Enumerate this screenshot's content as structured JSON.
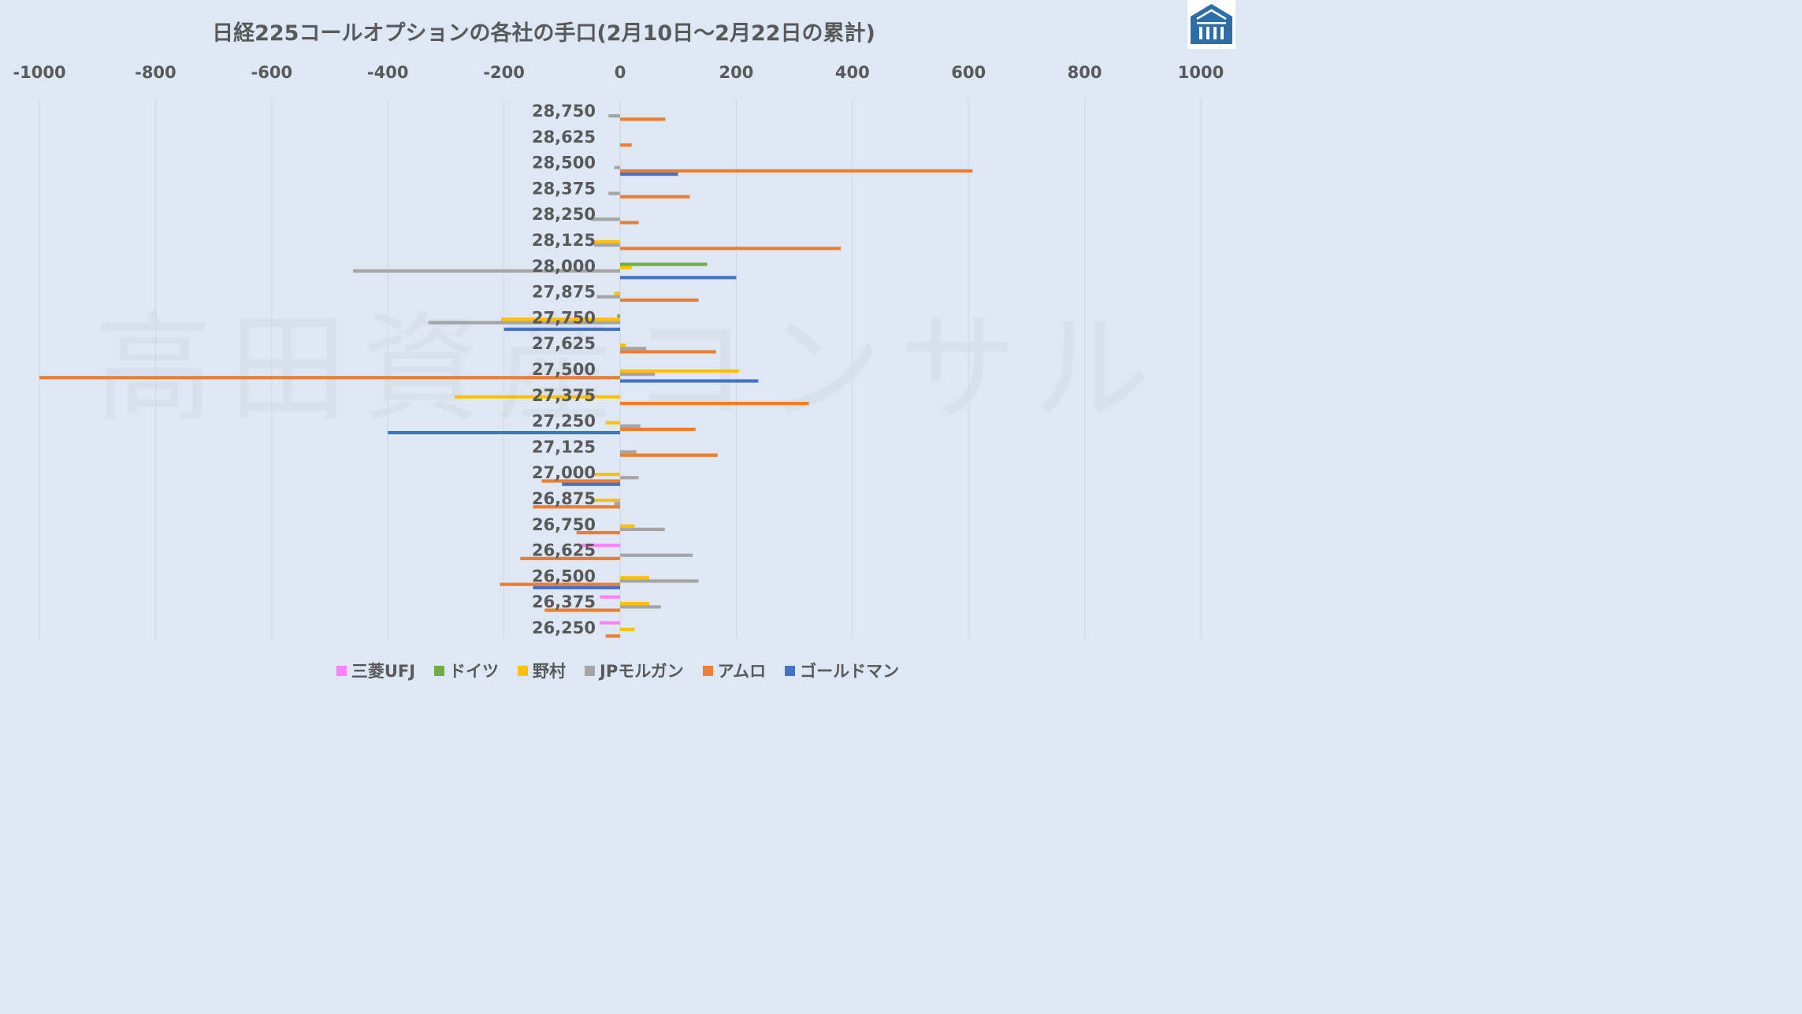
{
  "title": "日経225コールオプションの各社の手口(2月10日～2月22日の累計)",
  "watermark": "高田資産コンサル",
  "logo": {
    "icon": "building-crest-icon",
    "color": "#2e6ea8"
  },
  "chart_data": {
    "type": "bar",
    "orientation": "horizontal",
    "title": "日経225コールオプションの各社の手口(2月10日～2月22日の累計)",
    "xlim": [
      -1000,
      1000
    ],
    "xticks": [
      "-1000",
      "-800",
      "-600",
      "-400",
      "-200",
      "0",
      "200",
      "400",
      "600",
      "800",
      "1000"
    ],
    "xtick_values": [
      -1000,
      -800,
      -600,
      -400,
      -200,
      0,
      200,
      400,
      600,
      800,
      1000
    ],
    "grid": true,
    "legend_position": "bottom",
    "categories": [
      "28,750",
      "28,625",
      "28,500",
      "28,375",
      "28,250",
      "28,125",
      "28,000",
      "27,875",
      "27,750",
      "27,625",
      "27,500",
      "27,375",
      "27,250",
      "27,125",
      "27,000",
      "26,875",
      "26,750",
      "26,625",
      "26,500",
      "26,375",
      "26,250"
    ],
    "series": [
      {
        "name": "三菱UFJ",
        "color": "#ff80ff",
        "values": [
          0,
          0,
          0,
          0,
          0,
          0,
          0,
          0,
          0,
          0,
          0,
          0,
          0,
          0,
          0,
          0,
          0,
          -65,
          0,
          -35,
          -35
        ]
      },
      {
        "name": "ドイツ",
        "color": "#70ad47",
        "values": [
          0,
          0,
          0,
          0,
          0,
          0,
          150,
          0,
          -5,
          0,
          0,
          0,
          0,
          0,
          0,
          0,
          0,
          0,
          0,
          0,
          0
        ]
      },
      {
        "name": "野村",
        "color": "#ffc000",
        "values": [
          0,
          0,
          0,
          0,
          0,
          -45,
          20,
          -10,
          -205,
          10,
          205,
          -285,
          -25,
          0,
          -45,
          -45,
          25,
          0,
          50,
          50,
          25
        ]
      },
      {
        "name": "JPモルガン",
        "color": "#a5a5a5",
        "values": [
          -20,
          0,
          -10,
          -20,
          -50,
          -45,
          -460,
          -40,
          -330,
          45,
          60,
          0,
          35,
          28,
          32,
          -10,
          77,
          125,
          135,
          70,
          0
        ]
      },
      {
        "name": "アムロ",
        "color": "#ed7d31",
        "values": [
          78,
          20,
          607,
          120,
          32,
          380,
          0,
          135,
          0,
          165,
          -1000,
          325,
          130,
          168,
          -135,
          -150,
          -75,
          -172,
          -207,
          -130,
          -25
        ]
      },
      {
        "name": "ゴールドマン",
        "color": "#4472c4",
        "values": [
          0,
          0,
          100,
          0,
          0,
          0,
          200,
          0,
          -200,
          0,
          238,
          0,
          -400,
          0,
          -100,
          0,
          0,
          0,
          -150,
          0,
          0
        ]
      }
    ]
  }
}
